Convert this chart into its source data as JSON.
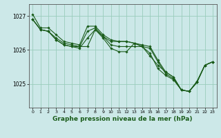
{
  "background_color": "#cce8e8",
  "grid_color": "#99ccbb",
  "line_color": "#1a5c1a",
  "marker_color": "#1a5c1a",
  "xlabel": "Graphe pression niveau de la mer (hPa)",
  "xlabel_fontsize": 6.5,
  "ytick_labels": [
    "1025",
    "1026",
    "1027"
  ],
  "yticks": [
    1025,
    1026,
    1027
  ],
  "ylim": [
    1024.3,
    1027.35
  ],
  "xlim": [
    -0.5,
    23.5
  ],
  "xticks": [
    0,
    1,
    2,
    3,
    4,
    5,
    6,
    7,
    8,
    9,
    10,
    11,
    12,
    13,
    14,
    15,
    16,
    17,
    18,
    19,
    20,
    21,
    22,
    23
  ],
  "series": [
    [
      1027.05,
      1026.65,
      1026.65,
      1026.45,
      1026.25,
      1026.2,
      1026.15,
      1026.7,
      1026.7,
      1026.45,
      1026.3,
      1026.25,
      1026.25,
      1026.2,
      1026.15,
      1026.1,
      1025.7,
      1025.35,
      1025.2,
      1024.82,
      1024.78,
      1025.08,
      1025.55,
      1025.65
    ],
    [
      1026.9,
      1026.6,
      1026.55,
      1026.3,
      1026.15,
      1026.1,
      1026.05,
      1026.35,
      1026.6,
      1026.35,
      1026.05,
      1025.95,
      1025.95,
      1026.2,
      1026.1,
      1025.9,
      1025.45,
      1025.25,
      1025.12,
      1024.82,
      1024.78,
      1025.05,
      1025.55,
      1025.65
    ],
    [
      1026.9,
      1026.6,
      1026.55,
      1026.3,
      1026.15,
      1026.1,
      1026.1,
      1026.55,
      1026.65,
      1026.4,
      1026.15,
      1026.1,
      1026.1,
      1026.1,
      1026.1,
      1025.82,
      1025.55,
      1025.35,
      1025.2,
      1024.82,
      1024.78,
      1025.05,
      1025.55,
      1025.65
    ],
    [
      1026.9,
      1026.6,
      1026.55,
      1026.35,
      1026.2,
      1026.15,
      1026.1,
      1026.1,
      1026.6,
      1026.4,
      1026.25,
      1026.25,
      1026.25,
      1026.2,
      1026.1,
      1026.05,
      1025.65,
      1025.3,
      1025.15,
      1024.82,
      1024.78,
      1025.05,
      1025.55,
      1025.65
    ]
  ]
}
